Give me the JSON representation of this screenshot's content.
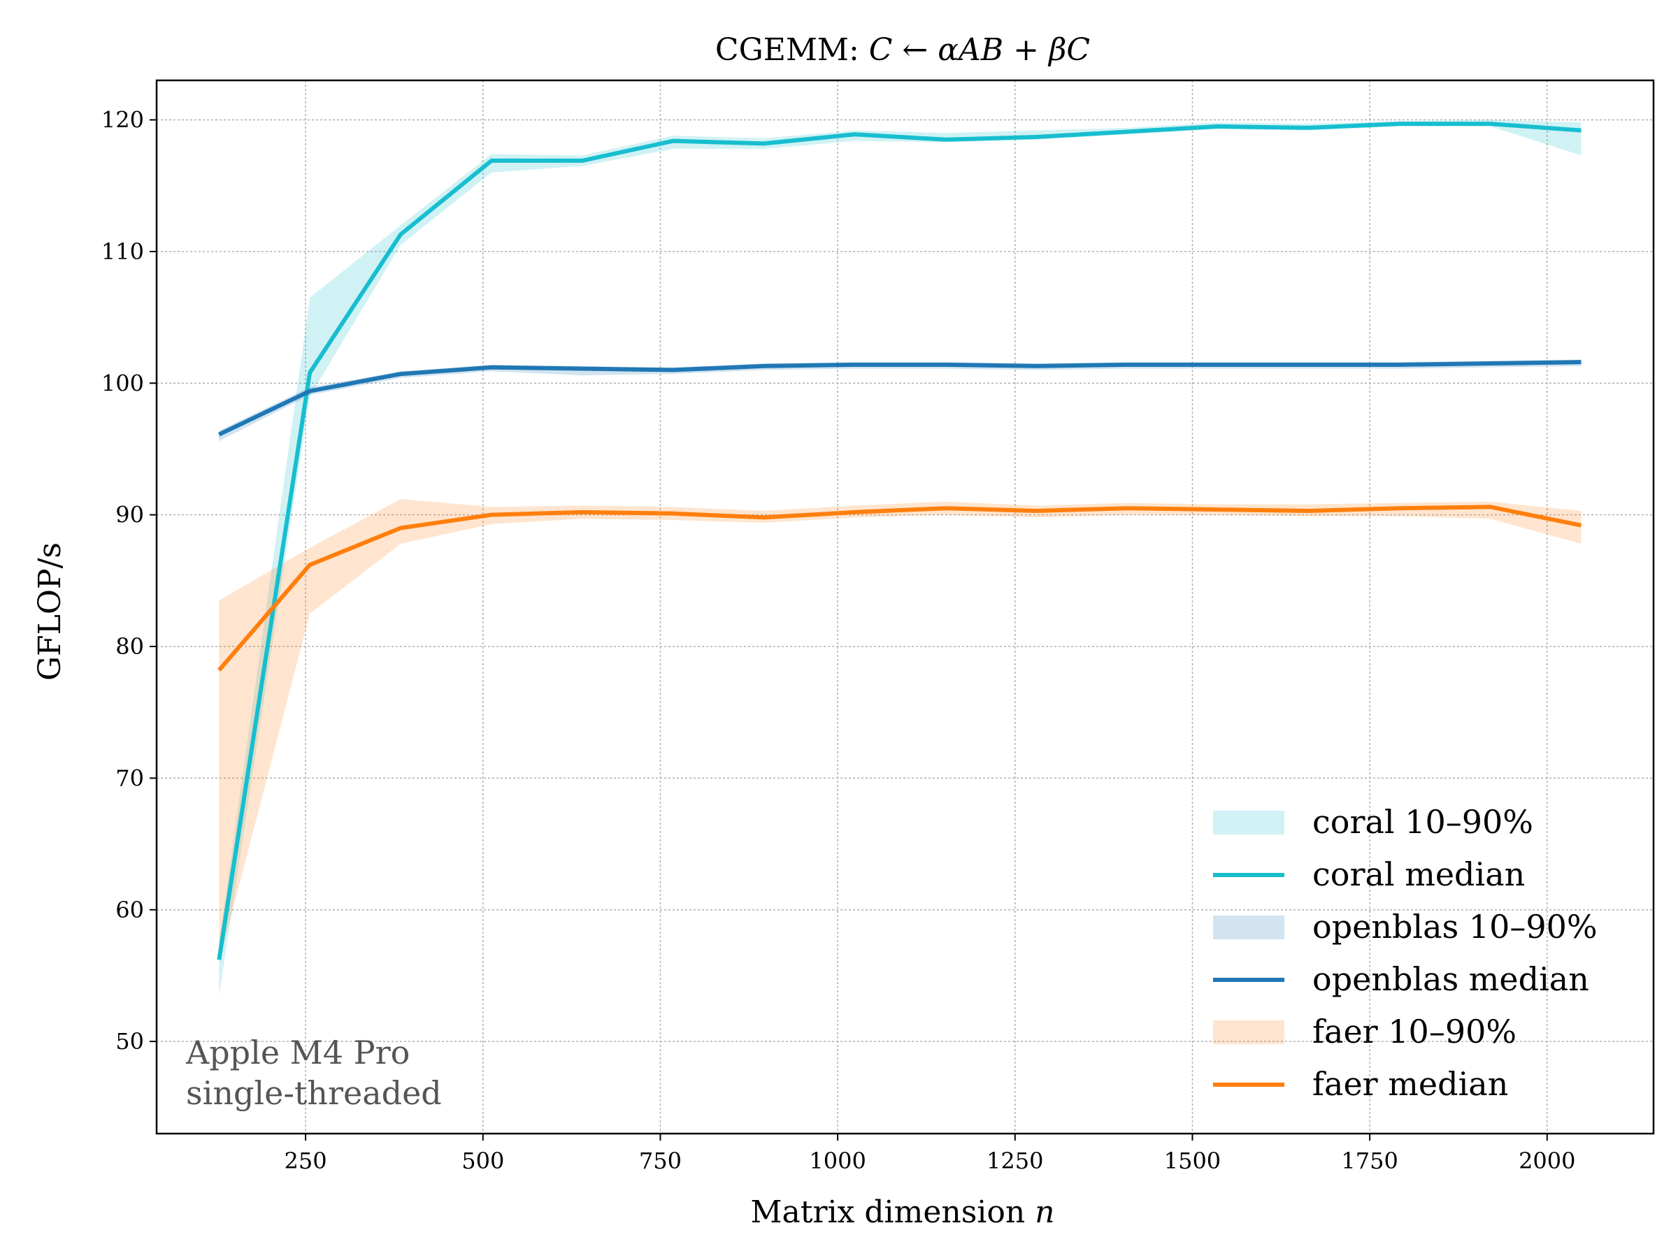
{
  "chart_data": {
    "type": "line",
    "title_prefix": "CGEMM: ",
    "title_math": "C ← αAB + βC",
    "xlabel_prefix": "Matrix dimension ",
    "xlabel_math": "n",
    "ylabel": "GFLOP/s",
    "xlim": [
      40,
      2150
    ],
    "ylim": [
      43,
      123
    ],
    "xticks": [
      250,
      500,
      750,
      1000,
      1250,
      1500,
      1750,
      2000
    ],
    "yticks": [
      50,
      60,
      70,
      80,
      90,
      100,
      110,
      120
    ],
    "grid": true,
    "legend_position": "bottom-right",
    "x": [
      128,
      256,
      384,
      512,
      640,
      768,
      896,
      1024,
      1152,
      1280,
      1408,
      1536,
      1664,
      1792,
      1920,
      2048
    ],
    "series": [
      {
        "name": "coral",
        "color": "#17becf",
        "median": [
          56.2,
          100.8,
          111.3,
          116.9,
          116.9,
          118.4,
          118.2,
          118.9,
          118.5,
          118.7,
          119.1,
          119.5,
          119.4,
          119.7,
          119.7,
          119.2
        ],
        "p10": [
          53.5,
          99.0,
          110.5,
          116.0,
          116.5,
          117.8,
          117.8,
          118.4,
          118.3,
          118.5,
          118.9,
          119.3,
          119.2,
          119.5,
          119.5,
          117.3
        ],
        "p90": [
          57.5,
          106.5,
          112.0,
          117.4,
          117.3,
          118.8,
          118.6,
          119.2,
          119.0,
          119.2,
          119.4,
          119.8,
          119.7,
          119.9,
          120.0,
          119.8
        ]
      },
      {
        "name": "openblas",
        "color": "#1f77b4",
        "median": [
          96.1,
          99.4,
          100.7,
          101.2,
          101.1,
          101.0,
          101.3,
          101.4,
          101.4,
          101.3,
          101.4,
          101.4,
          101.4,
          101.4,
          101.5,
          101.6
        ],
        "p10": [
          95.6,
          99.1,
          100.4,
          100.9,
          100.6,
          100.7,
          101.0,
          101.1,
          101.1,
          101.0,
          101.1,
          101.1,
          101.1,
          101.1,
          101.2,
          101.3
        ],
        "p90": [
          96.4,
          99.7,
          100.9,
          101.4,
          101.3,
          101.2,
          101.5,
          101.6,
          101.6,
          101.5,
          101.6,
          101.6,
          101.6,
          101.6,
          101.7,
          101.8
        ]
      },
      {
        "name": "faer",
        "color": "#ff7f0e",
        "median": [
          78.2,
          86.2,
          89.0,
          90.0,
          90.2,
          90.1,
          89.8,
          90.2,
          90.5,
          90.3,
          90.5,
          90.4,
          90.3,
          90.5,
          90.6,
          89.2
        ],
        "p10": [
          56.0,
          82.5,
          87.8,
          89.3,
          89.7,
          89.6,
          89.4,
          89.8,
          90.0,
          89.8,
          90.0,
          90.0,
          89.9,
          89.9,
          89.7,
          87.8
        ],
        "p90": [
          83.5,
          87.5,
          91.2,
          90.6,
          90.7,
          90.6,
          90.3,
          90.7,
          91.0,
          90.7,
          90.9,
          90.8,
          90.8,
          90.9,
          91.0,
          90.3
        ]
      }
    ],
    "legend": [
      {
        "label": "coral 10–90%",
        "kind": "band",
        "color": "#17becf"
      },
      {
        "label": "coral median",
        "kind": "line",
        "color": "#17becf"
      },
      {
        "label": "openblas 10–90%",
        "kind": "band",
        "color": "#1f77b4"
      },
      {
        "label": "openblas median",
        "kind": "line",
        "color": "#1f77b4"
      },
      {
        "label": "faer 10–90%",
        "kind": "band",
        "color": "#ff7f0e"
      },
      {
        "label": "faer median",
        "kind": "line",
        "color": "#ff7f0e"
      }
    ],
    "annotation": [
      "Apple M4 Pro",
      "single-threaded"
    ]
  }
}
